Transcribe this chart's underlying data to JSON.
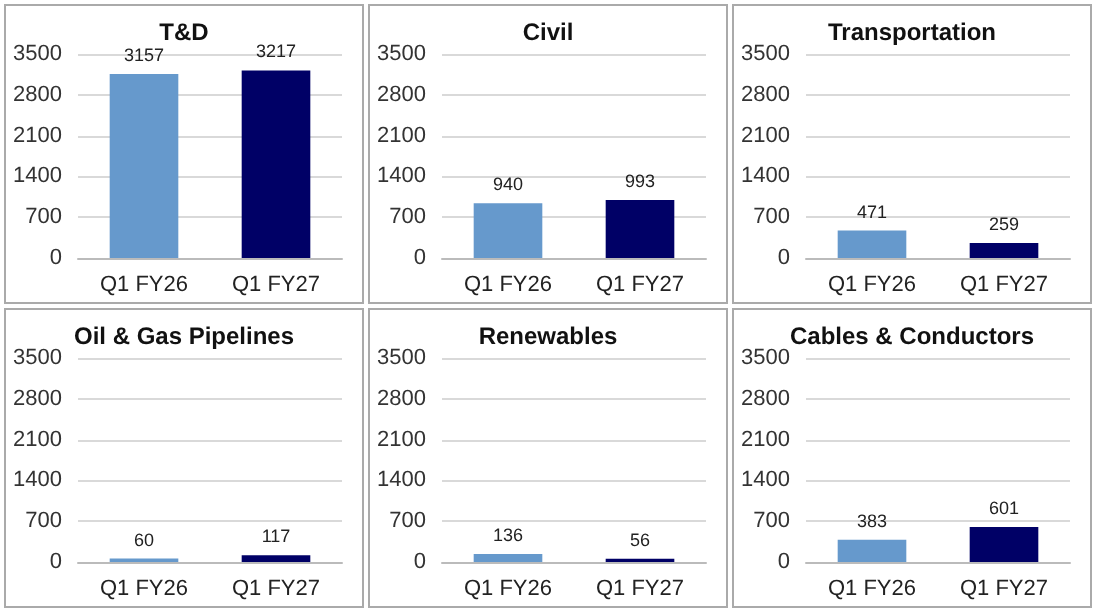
{
  "chart_data": [
    {
      "type": "bar",
      "title": "T&D",
      "categories": [
        "Q1 FY26",
        "Q1 FY27"
      ],
      "values": [
        3157,
        3217
      ],
      "colors": [
        "#6699cc",
        "#000066"
      ],
      "ylim": [
        0,
        3500
      ],
      "yticks": [
        0,
        700,
        1400,
        2100,
        2800,
        3500
      ],
      "grid": "y",
      "data_labels": true
    },
    {
      "type": "bar",
      "title": "Civil",
      "categories": [
        "Q1 FY26",
        "Q1 FY27"
      ],
      "values": [
        940,
        993
      ],
      "colors": [
        "#6699cc",
        "#000066"
      ],
      "ylim": [
        0,
        3500
      ],
      "yticks": [
        0,
        700,
        1400,
        2100,
        2800,
        3500
      ],
      "grid": "y",
      "data_labels": true
    },
    {
      "type": "bar",
      "title": "Transportation",
      "categories": [
        "Q1 FY26",
        "Q1 FY27"
      ],
      "values": [
        471,
        259
      ],
      "colors": [
        "#6699cc",
        "#000066"
      ],
      "ylim": [
        0,
        3500
      ],
      "yticks": [
        0,
        700,
        1400,
        2100,
        2800,
        3500
      ],
      "grid": "y",
      "data_labels": true
    },
    {
      "type": "bar",
      "title": "Oil & Gas Pipelines",
      "categories": [
        "Q1 FY26",
        "Q1 FY27"
      ],
      "values": [
        60,
        117
      ],
      "colors": [
        "#6699cc",
        "#000066"
      ],
      "ylim": [
        0,
        3500
      ],
      "yticks": [
        0,
        700,
        1400,
        2100,
        2800,
        3500
      ],
      "grid": "y",
      "data_labels": true
    },
    {
      "type": "bar",
      "title": "Renewables",
      "categories": [
        "Q1 FY26",
        "Q1 FY27"
      ],
      "values": [
        136,
        56
      ],
      "colors": [
        "#6699cc",
        "#000066"
      ],
      "ylim": [
        0,
        3500
      ],
      "yticks": [
        0,
        700,
        1400,
        2100,
        2800,
        3500
      ],
      "grid": "y",
      "data_labels": true
    },
    {
      "type": "bar",
      "title": "Cables & Conductors",
      "categories": [
        "Q1 FY26",
        "Q1 FY27"
      ],
      "values": [
        383,
        601
      ],
      "colors": [
        "#6699cc",
        "#000066"
      ],
      "ylim": [
        0,
        3500
      ],
      "yticks": [
        0,
        700,
        1400,
        2100,
        2800,
        3500
      ],
      "grid": "y",
      "data_labels": true
    }
  ]
}
